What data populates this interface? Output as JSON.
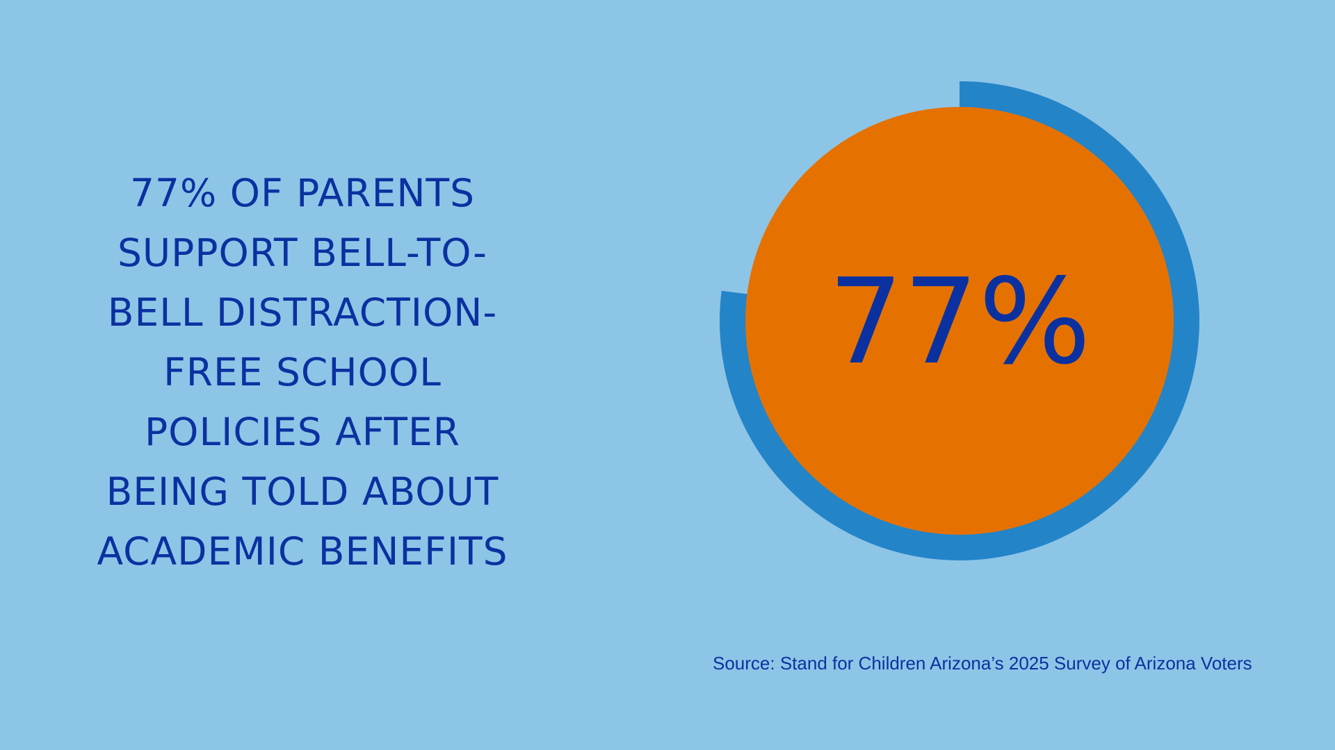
{
  "headline": {
    "lines": [
      "77% OF PARENTS",
      "SUPPORT BELL-TO-",
      "BELL DISTRACTION-",
      "FREE SCHOOL",
      "POLICIES AFTER",
      "BEING TOLD ABOUT",
      "ACADEMIC BENEFITS"
    ]
  },
  "chart_data": {
    "type": "pie",
    "style": "donut-progress",
    "value_percent": 77,
    "center_label": "77%",
    "colors": {
      "ring": "#2484c8",
      "center": "#e57200",
      "label": "#0b31a0",
      "background": "#8dc5e7"
    }
  },
  "source": {
    "text": "Source: Stand for Children Arizona’s 2025 Survey of Arizona Voters"
  }
}
